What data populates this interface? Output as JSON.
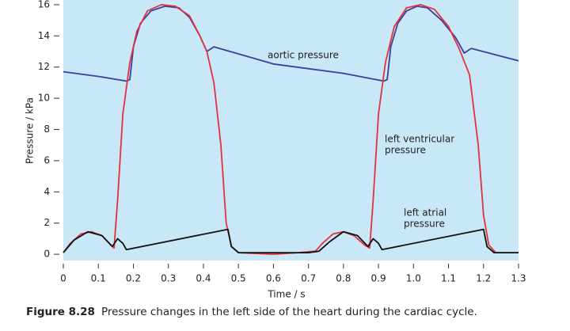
{
  "chart_data": {
    "type": "line",
    "ylabel": "Pressure / kPa",
    "xlabel": "Time / s",
    "caption_label": "Figure 8.28",
    "caption": "Pressure changes in the left side of the heart during the cardiac cycle.",
    "background": "#c8e7f7",
    "xlim": [
      0,
      1.3
    ],
    "ylim": [
      -0.4,
      16.3
    ],
    "xticks": [
      0,
      0.1,
      0.2,
      0.3,
      0.4,
      0.5,
      0.6,
      0.7,
      0.8,
      0.9,
      {
        "value": 1,
        "label": "1.0"
      },
      1.1,
      1.2,
      1.3
    ],
    "yticks": [
      0,
      2,
      4,
      6,
      8,
      10,
      12,
      14,
      16
    ],
    "series": [
      {
        "color": "#3b3f9e",
        "x": [
          0,
          0.1,
          0.18,
          0.19,
          0.2,
          0.22,
          0.25,
          0.29,
          0.33,
          0.36,
          0.39,
          0.41,
          0.43,
          0.6,
          0.8,
          0.915,
          0.925,
          0.935,
          0.955,
          0.98,
          1.01,
          1.04,
          1.08,
          1.12,
          1.145,
          1.165,
          1.3
        ],
        "values": [
          11.7,
          11.4,
          11.1,
          11.2,
          13.3,
          14.8,
          15.6,
          15.9,
          15.8,
          15.2,
          14.0,
          13.0,
          13.3,
          12.2,
          11.6,
          11.1,
          11.2,
          13.3,
          14.8,
          15.6,
          15.9,
          15.8,
          15.0,
          13.9,
          12.9,
          13.2,
          12.4
        ]
      },
      {
        "color": "#e3323c",
        "x": [
          0,
          0.02,
          0.05,
          0.08,
          0.11,
          0.135,
          0.145,
          0.155,
          0.17,
          0.19,
          0.21,
          0.24,
          0.28,
          0.32,
          0.36,
          0.39,
          0.41,
          0.43,
          0.45,
          0.465,
          0.48,
          0.5,
          0.6,
          0.67,
          0.72,
          0.74,
          0.77,
          0.8,
          0.83,
          0.86,
          0.875,
          0.885,
          0.9,
          0.92,
          0.945,
          0.98,
          1.02,
          1.06,
          1.1,
          1.13,
          1.16,
          1.185,
          1.2,
          1.215,
          1.235,
          1.3
        ],
        "values": [
          0.1,
          0.7,
          1.3,
          1.45,
          1.2,
          0.6,
          0.4,
          3.5,
          9.0,
          12.3,
          14.3,
          15.6,
          16.0,
          15.9,
          15.3,
          14.0,
          13.0,
          11.0,
          7.0,
          2.0,
          0.5,
          0.1,
          0,
          0.1,
          0.2,
          0.7,
          1.3,
          1.45,
          1.2,
          0.6,
          0.4,
          3.5,
          9.0,
          12.3,
          14.6,
          15.8,
          16.0,
          15.7,
          14.6,
          13.2,
          11.5,
          7.0,
          2.5,
          0.6,
          0.1,
          0.1
        ]
      },
      {
        "color": "#111111",
        "x": [
          0,
          0.03,
          0.07,
          0.11,
          0.14,
          0.155,
          0.17,
          0.18,
          0.47,
          0.48,
          0.5,
          0.7,
          0.73,
          0.76,
          0.8,
          0.84,
          0.87,
          0.885,
          0.9,
          0.91,
          1.2,
          1.21,
          1.23,
          1.3
        ],
        "values": [
          0.1,
          0.9,
          1.45,
          1.2,
          0.5,
          1.0,
          0.7,
          0.3,
          1.6,
          0.5,
          0.1,
          0.1,
          0.2,
          0.8,
          1.45,
          1.2,
          0.5,
          1.0,
          0.7,
          0.3,
          1.6,
          0.5,
          0.1,
          0.1
        ]
      }
    ],
    "annotations": [
      [
        "aortic pressure"
      ],
      [
        "left ventricular",
        "pressure"
      ],
      [
        "left atrial",
        "pressure"
      ]
    ]
  }
}
